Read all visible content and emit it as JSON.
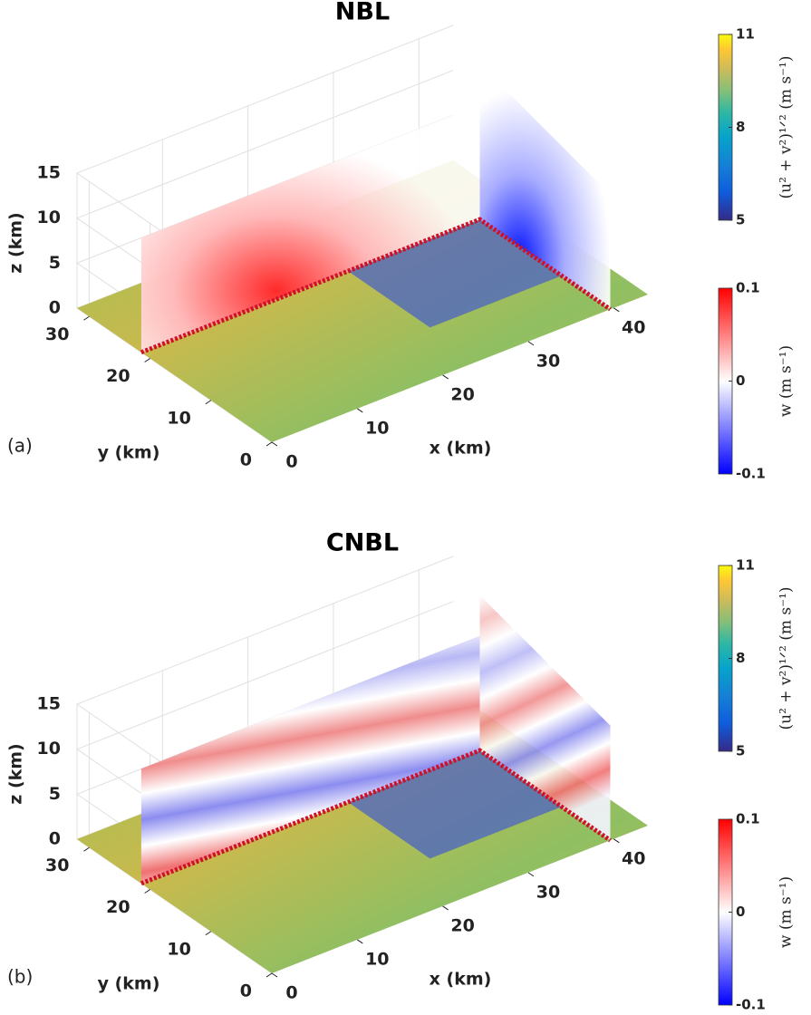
{
  "chart_data": [
    {
      "type": "surface3d",
      "title": "NBL",
      "panel_label": "(a)",
      "pattern": "lobes",
      "x_label": "x (km)",
      "y_label": "y (km)",
      "z_label": "z (km)",
      "xlim": [
        0,
        44
      ],
      "ylim": [
        0,
        32
      ],
      "zlim": [
        0,
        15
      ],
      "xticks": [
        0,
        10,
        20,
        30,
        40
      ],
      "yticks": [
        0,
        10,
        20,
        30
      ],
      "zticks": [
        0,
        5,
        10,
        15
      ],
      "colorbars": [
        {
          "label": "(u² + v²)¹ᐟ² (m s⁻¹)",
          "lim": [
            5,
            11
          ],
          "ticks": [
            5,
            8,
            11
          ],
          "colormap": "parula"
        },
        {
          "label": "w (m s⁻¹)",
          "lim": [
            -0.1,
            0.1
          ],
          "ticks": [
            -0.1,
            0,
            0.1
          ],
          "colormap": "bwr"
        }
      ]
    },
    {
      "type": "surface3d",
      "title": "CNBL",
      "panel_label": "(b)",
      "pattern": "waves",
      "x_label": "x (km)",
      "y_label": "y (km)",
      "z_label": "z (km)",
      "xlim": [
        0,
        44
      ],
      "ylim": [
        0,
        32
      ],
      "zlim": [
        0,
        15
      ],
      "xticks": [
        0,
        10,
        20,
        30,
        40
      ],
      "yticks": [
        0,
        10,
        20,
        30
      ],
      "zticks": [
        0,
        5,
        10,
        15
      ],
      "colorbars": [
        {
          "label": "(u² + v²)¹ᐟ² (m s⁻¹)",
          "lim": [
            5,
            11
          ],
          "ticks": [
            5,
            8,
            11
          ],
          "colormap": "parula"
        },
        {
          "label": "w (m s⁻¹)",
          "lim": [
            -0.1,
            0.1
          ],
          "ticks": [
            -0.1,
            0,
            0.1
          ],
          "colormap": "bwr"
        }
      ]
    }
  ]
}
